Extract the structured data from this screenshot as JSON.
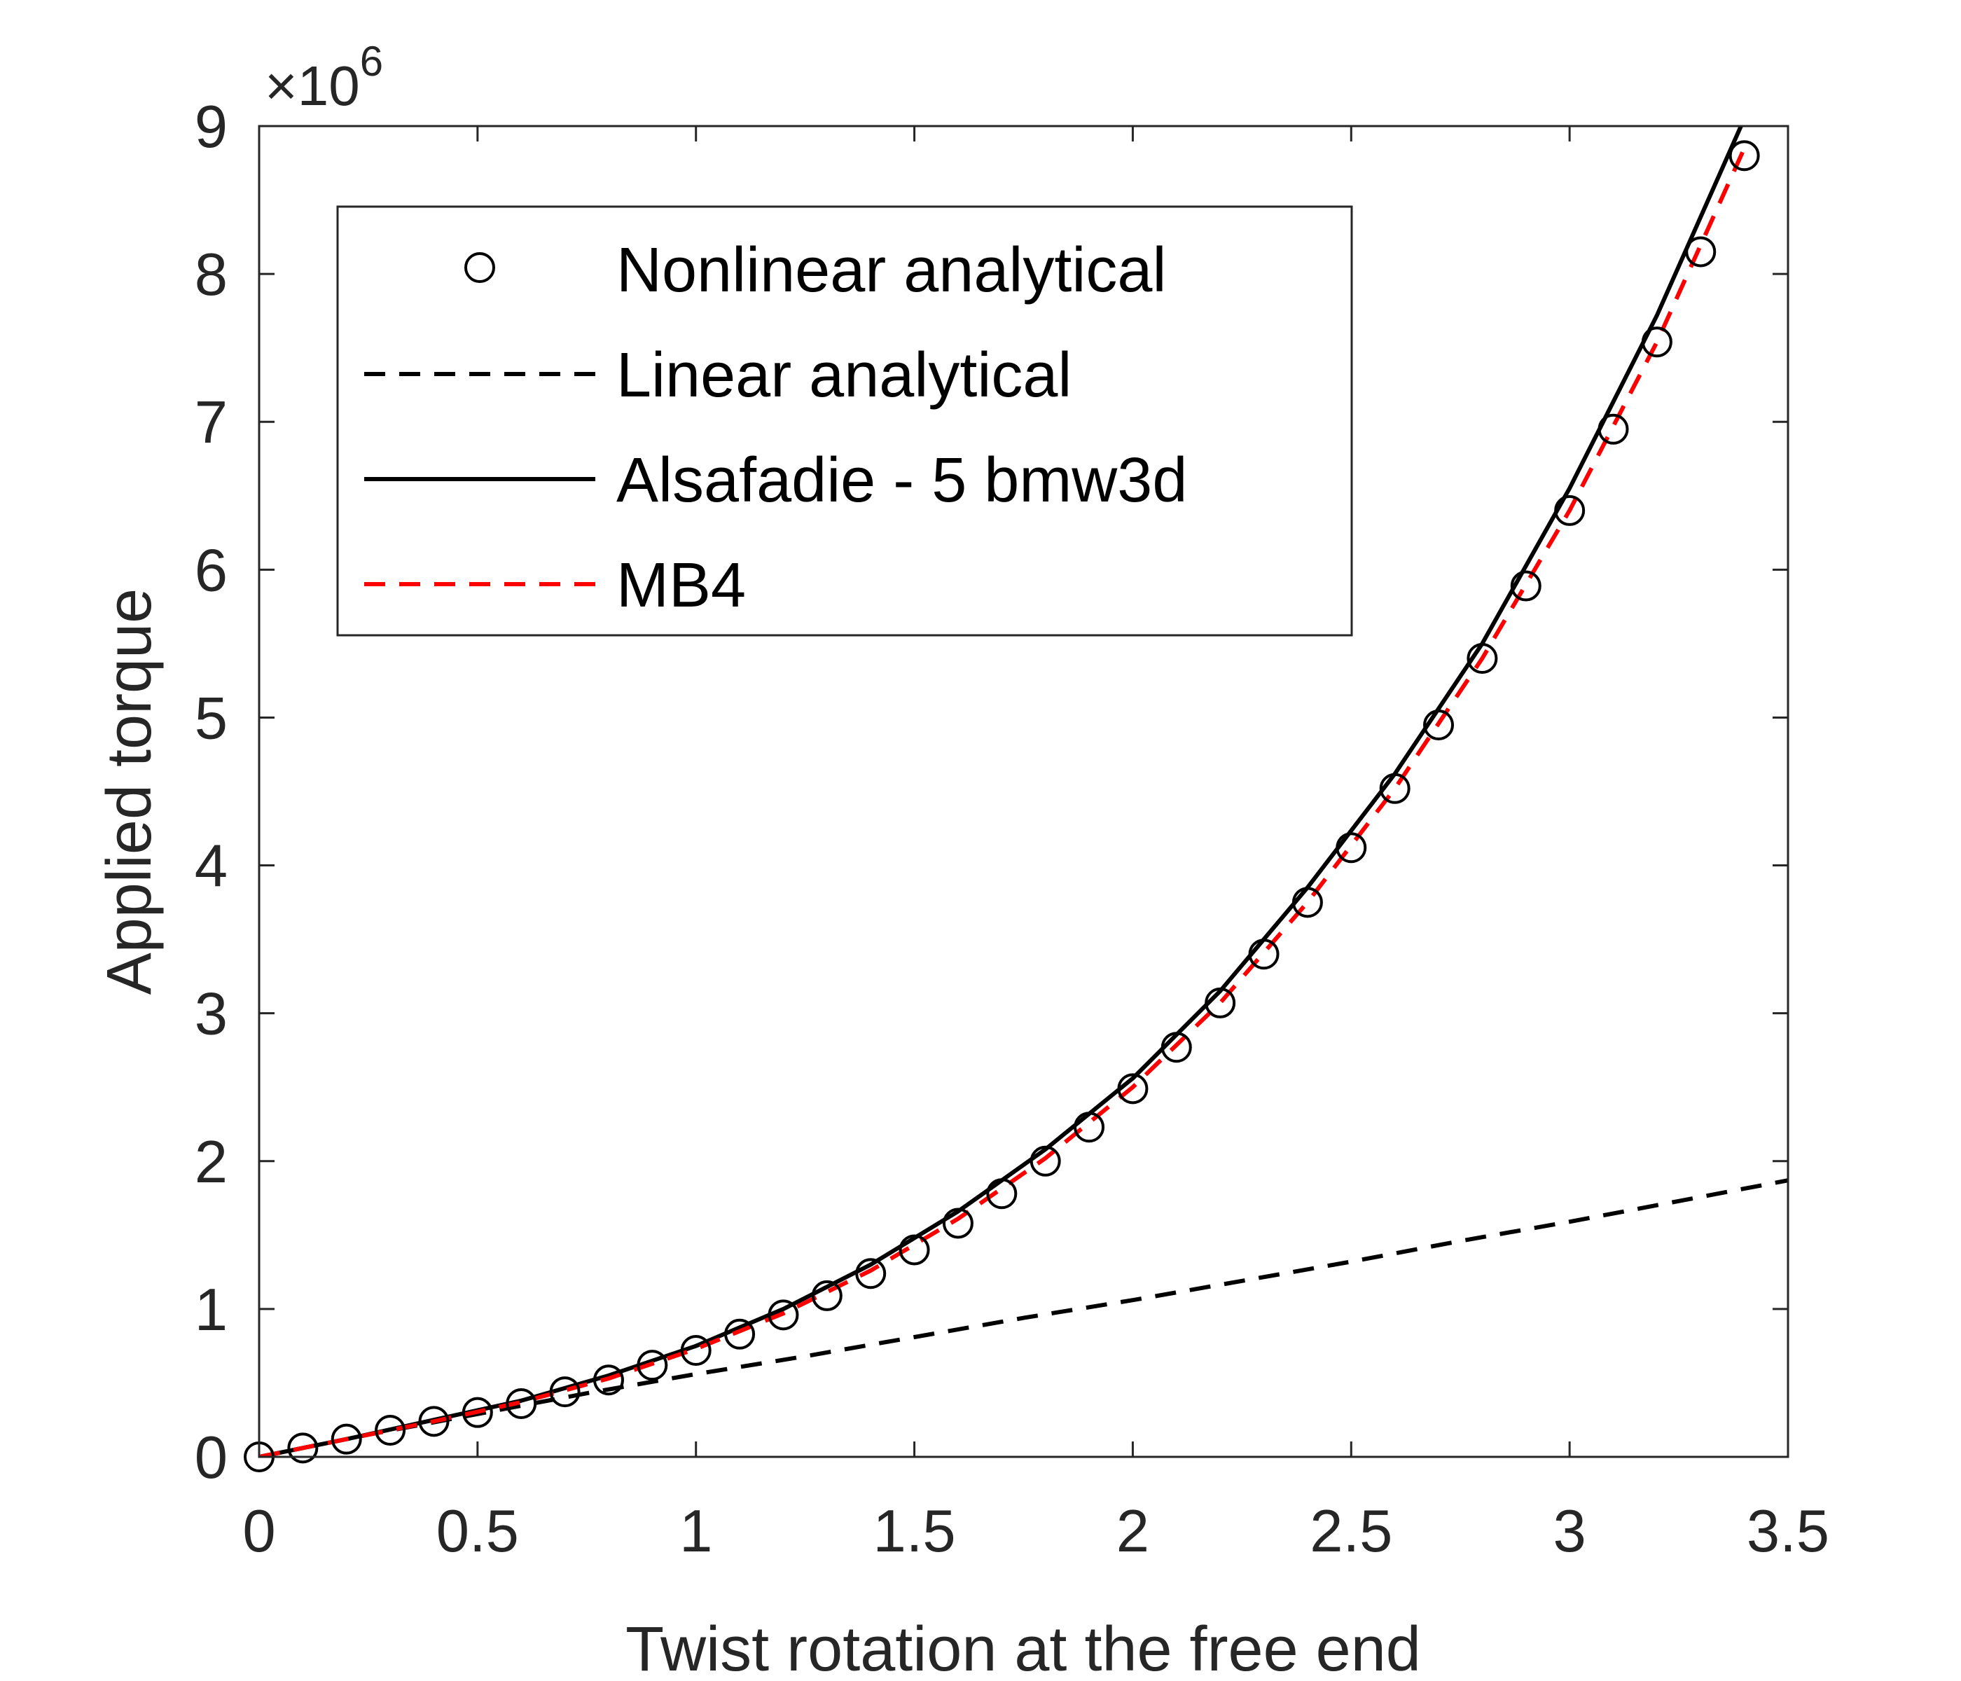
{
  "chart_data": {
    "type": "line",
    "xlabel": "Twist rotation at the free end",
    "ylabel": "Applied torque",
    "xlim": [
      0,
      3.5
    ],
    "ylim": [
      0,
      9
    ],
    "x_ticks": [
      0,
      0.5,
      1,
      1.5,
      2,
      2.5,
      3,
      3.5
    ],
    "x_tick_labels": [
      "0",
      "0.5",
      "1",
      "1.5",
      "2",
      "2.5",
      "3",
      "3.5"
    ],
    "y_ticks": [
      0,
      1,
      2,
      3,
      4,
      5,
      6,
      7,
      8,
      9
    ],
    "y_tick_labels": [
      "0",
      "1",
      "2",
      "3",
      "4",
      "5",
      "6",
      "7",
      "8",
      "9"
    ],
    "y_exponent": {
      "base": "×10",
      "power": "6"
    },
    "grid": false,
    "legend_position": "top-left",
    "series": [
      {
        "name": "Nonlinear analytical",
        "style": "markers",
        "marker": "circle",
        "color": "#000000",
        "x": [
          0,
          0.1,
          0.2,
          0.3,
          0.4,
          0.5,
          0.6,
          0.7,
          0.8,
          0.9,
          1.0,
          1.1,
          1.2,
          1.3,
          1.4,
          1.5,
          1.6,
          1.7,
          1.8,
          1.9,
          2.0,
          2.1,
          2.2,
          2.3,
          2.4,
          2.5,
          2.6,
          2.7,
          2.8,
          2.9,
          3.0,
          3.1,
          3.2,
          3.3,
          3.4
        ],
        "y": [
          0,
          0.06,
          0.12,
          0.18,
          0.24,
          0.3,
          0.36,
          0.44,
          0.52,
          0.62,
          0.72,
          0.83,
          0.96,
          1.09,
          1.24,
          1.4,
          1.58,
          1.78,
          2.0,
          2.23,
          2.49,
          2.77,
          3.07,
          3.4,
          3.75,
          4.12,
          4.52,
          4.95,
          5.4,
          5.89,
          6.4,
          6.95,
          7.54,
          8.15,
          8.8
        ]
      },
      {
        "name": "Linear analytical",
        "style": "dashed",
        "color": "#000000",
        "x": [
          0,
          0.25,
          0.5,
          0.75,
          1.0,
          1.25,
          1.5,
          1.75,
          2.0,
          2.25,
          2.5,
          2.75,
          3.0,
          3.25,
          3.5
        ],
        "y": [
          0,
          0.15,
          0.29,
          0.43,
          0.56,
          0.68,
          0.81,
          0.94,
          1.06,
          1.19,
          1.32,
          1.46,
          1.59,
          1.73,
          1.87
        ]
      },
      {
        "name": "Alsafadie - 5 bmw3d",
        "style": "solid",
        "color": "#000000",
        "x": [
          0,
          0.2,
          0.4,
          0.6,
          0.8,
          1.0,
          1.2,
          1.4,
          1.6,
          1.8,
          2.0,
          2.2,
          2.4,
          2.6,
          2.8,
          3.0,
          3.2,
          3.4
        ],
        "y": [
          0,
          0.12,
          0.25,
          0.38,
          0.55,
          0.75,
          1.0,
          1.3,
          1.66,
          2.08,
          2.56,
          3.15,
          3.85,
          4.62,
          5.5,
          6.55,
          7.72,
          9.05
        ]
      },
      {
        "name": "MB4",
        "style": "dashed",
        "color": "#ff0000",
        "x": [
          0,
          0.2,
          0.4,
          0.6,
          0.8,
          1.0,
          1.2,
          1.4,
          1.6,
          1.8,
          2.0,
          2.2,
          2.4,
          2.6,
          2.8,
          3.0,
          3.2,
          3.4
        ],
        "y": [
          0,
          0.12,
          0.24,
          0.37,
          0.53,
          0.73,
          0.97,
          1.26,
          1.61,
          2.02,
          2.5,
          3.07,
          3.75,
          4.52,
          5.4,
          6.4,
          7.54,
          8.85
        ]
      }
    ]
  }
}
